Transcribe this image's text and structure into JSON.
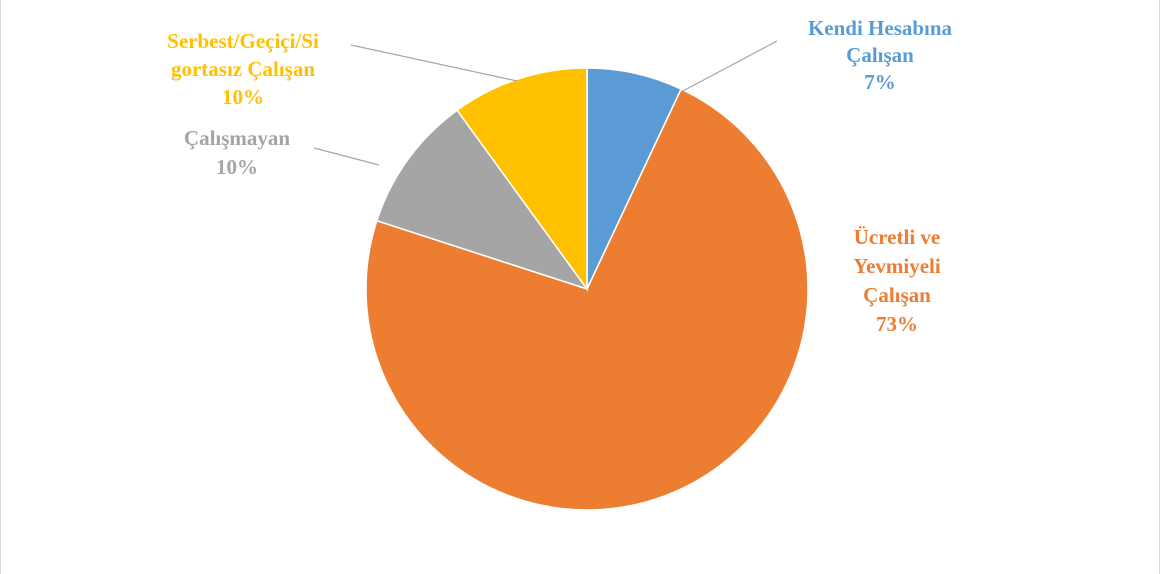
{
  "chart_data": {
    "type": "pie",
    "title": "",
    "start_angle_deg": 0,
    "direction": "clockwise",
    "legend": "none",
    "slices": [
      {
        "name": "Kendi Hesabına Çalışan",
        "label_lines": [
          "Kendi Hesabına",
          "Çalışan"
        ],
        "value": 7,
        "percent_label": "7%",
        "color": "#5B9BD5"
      },
      {
        "name": "Ücretli ve Yevmiyeli Çalışan",
        "label_lines": [
          "Ücretli ve",
          "Yevmiyeli",
          "Çalışan"
        ],
        "value": 73,
        "percent_label": "73%",
        "color": "#ED7D31"
      },
      {
        "name": "Çalışmayan",
        "label_lines": [
          "Çalışmayan"
        ],
        "value": 10,
        "percent_label": "10%",
        "color": "#A5A5A5"
      },
      {
        "name": "Serbest/Geçiçi/Sigortasız Çalışan",
        "label_lines": [
          "Serbest/Geçiçi/Si",
          "gortasız Çalışan"
        ],
        "value": 10,
        "percent_label": "10%",
        "color": "#FFC000"
      }
    ]
  }
}
